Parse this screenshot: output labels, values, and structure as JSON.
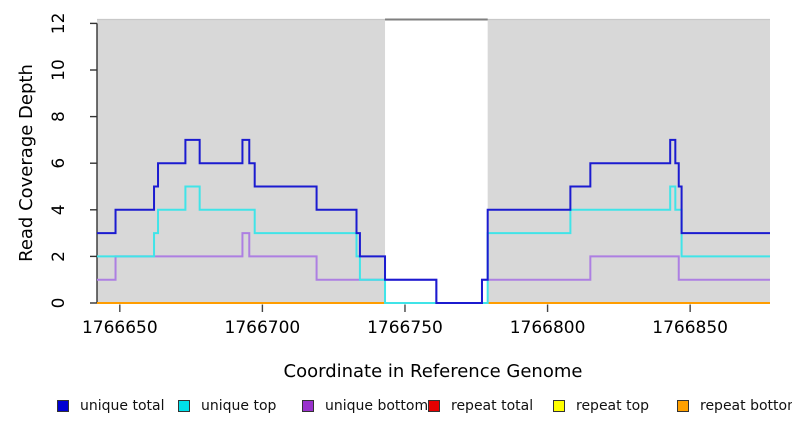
{
  "chart_data": {
    "type": "line",
    "step": true,
    "title": "",
    "xlabel": "Coordinate in Reference Genome",
    "ylabel": "Read Coverage Depth",
    "xlim": [
      1766642,
      1766878
    ],
    "ylim": [
      0,
      12
    ],
    "x_ticks": [
      1766650,
      1766700,
      1766750,
      1766800,
      1766850
    ],
    "y_ticks": [
      0,
      2,
      4,
      6,
      8,
      10,
      12
    ],
    "grid": false,
    "legend_position": "bottom",
    "shaded_regions": [
      [
        1766642,
        1766743
      ],
      [
        1766779,
        1766878
      ]
    ],
    "uncovered_gap": [
      1766743,
      1766779
    ],
    "series": [
      {
        "name": "unique total",
        "key": "unique_total",
        "color": "#1b1bd0",
        "points": [
          [
            1766642,
            3
          ],
          [
            1766648.5,
            4
          ],
          [
            1766662,
            5
          ],
          [
            1766663.4,
            6
          ],
          [
            1766673,
            7
          ],
          [
            1766678,
            6
          ],
          [
            1766693,
            7
          ],
          [
            1766695.4,
            6
          ],
          [
            1766697.3,
            5
          ],
          [
            1766719,
            4
          ],
          [
            1766733,
            3
          ],
          [
            1766734.2,
            2
          ],
          [
            1766743,
            1
          ],
          [
            1766761,
            0
          ],
          [
            1766777,
            1
          ],
          [
            1766779,
            4
          ],
          [
            1766808,
            5
          ],
          [
            1766815,
            6
          ],
          [
            1766843,
            7
          ],
          [
            1766844.8,
            6
          ],
          [
            1766846,
            5
          ],
          [
            1766847,
            3
          ]
        ]
      },
      {
        "name": "unique top",
        "key": "unique_top",
        "color": "#40e4e8",
        "points": [
          [
            1766642,
            2
          ],
          [
            1766662,
            3
          ],
          [
            1766663.4,
            4
          ],
          [
            1766673,
            5
          ],
          [
            1766678,
            4
          ],
          [
            1766697.3,
            3
          ],
          [
            1766733,
            2
          ],
          [
            1766734.2,
            1
          ],
          [
            1766743,
            0
          ],
          [
            1766779,
            3
          ],
          [
            1766808,
            4
          ],
          [
            1766843,
            5
          ],
          [
            1766844.8,
            4
          ],
          [
            1766847,
            2
          ]
        ]
      },
      {
        "name": "unique bottom",
        "key": "unique_bottom",
        "color": "#ad7fe2",
        "points": [
          [
            1766642,
            1
          ],
          [
            1766648.5,
            2
          ],
          [
            1766693,
            3
          ],
          [
            1766695.4,
            2
          ],
          [
            1766719,
            1
          ],
          [
            1766761,
            0
          ],
          [
            1766777,
            1
          ],
          [
            1766815,
            2
          ],
          [
            1766846,
            1
          ]
        ]
      },
      {
        "name": "repeat total",
        "key": "repeat_total",
        "color": "#e00000",
        "points": [
          [
            1766642,
            0
          ]
        ]
      },
      {
        "name": "repeat top",
        "key": "repeat_top",
        "color": "#ffff00",
        "points": [
          [
            1766642,
            0
          ]
        ]
      },
      {
        "name": "repeat bottom",
        "key": "repeat_bottom",
        "color": "#ff9d00",
        "points": [
          [
            1766642,
            0
          ]
        ]
      }
    ]
  },
  "legend": {
    "items": [
      {
        "label": "unique total",
        "color": "#0000d2"
      },
      {
        "label": "unique top",
        "color": "#00e0ea"
      },
      {
        "label": "unique bottom",
        "color": "#9932cc"
      },
      {
        "label": "repeat total",
        "color": "#e60000"
      },
      {
        "label": "repeat top",
        "color": "#ffff00"
      },
      {
        "label": "repeat bottom",
        "color": "#ffa000"
      }
    ]
  },
  "colors": {
    "background": "#ffffff",
    "region_fill": "#d8d8d8",
    "axis": "#333333",
    "tick": "#444444",
    "boundary_line": "#c8c8c8",
    "gap_boundary_line": "#7f7f7f"
  }
}
